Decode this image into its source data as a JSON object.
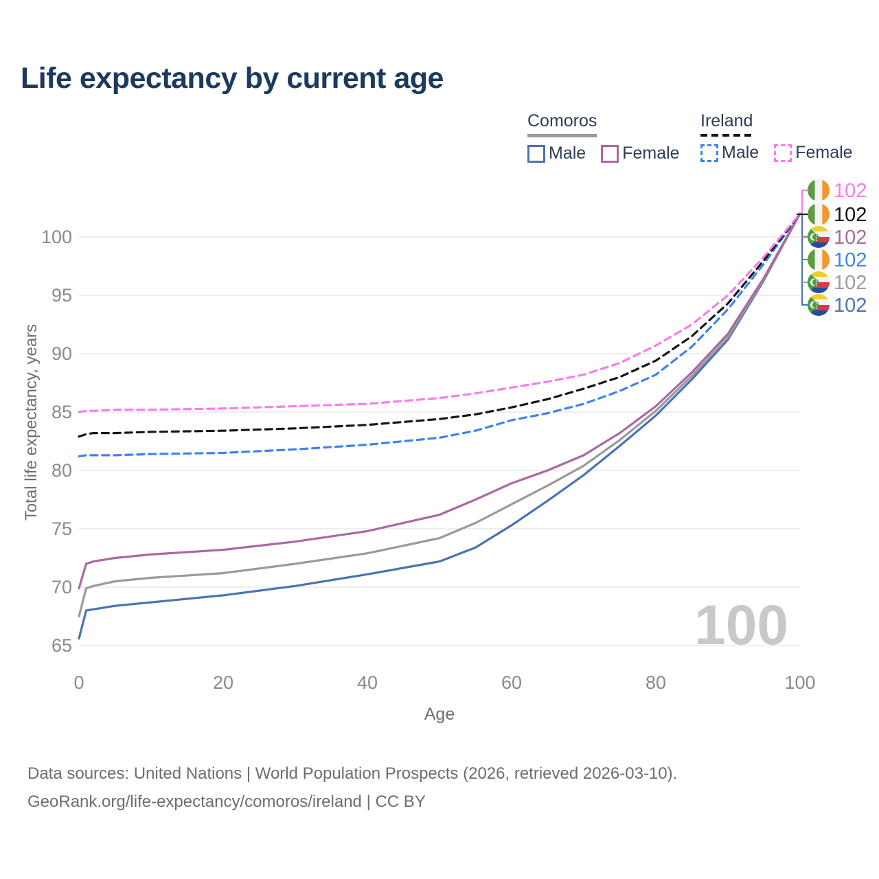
{
  "title": "Life expectancy by current age",
  "legend": {
    "groups": [
      {
        "name": "Comoros",
        "line_style": "solid",
        "underline_color": "#9b9b9b",
        "items": [
          {
            "label": "Male",
            "color": "#4a73b4"
          },
          {
            "label": "Female",
            "color": "#aa69a1"
          }
        ]
      },
      {
        "name": "Ireland",
        "line_style": "dashed",
        "underline_color": "#141414",
        "items": [
          {
            "label": "Male",
            "color": "#3f82ef"
          },
          {
            "label": "Female",
            "color": "#fa7ce9"
          }
        ]
      }
    ]
  },
  "chart_data": {
    "type": "line",
    "title": "Life expectancy by current age",
    "xlabel": "Age",
    "ylabel": "Total life expectancy, years",
    "x_ticks": [
      0,
      20,
      40,
      60,
      80,
      100
    ],
    "y_ticks": [
      65,
      70,
      75,
      80,
      85,
      90,
      95,
      100
    ],
    "xlim": [
      0,
      100
    ],
    "ylim": [
      64,
      103
    ],
    "grid": "horizontal",
    "legend_position": "top-right",
    "ages": [
      0,
      1,
      2,
      5,
      10,
      20,
      30,
      40,
      50,
      55,
      60,
      65,
      70,
      75,
      80,
      85,
      90,
      95,
      100
    ],
    "series": [
      {
        "name": "Comoros Male",
        "country": "Comoros",
        "sex": "Male",
        "style": "solid",
        "color": "#4a73b4",
        "values": [
          65.6,
          68.0,
          68.1,
          68.4,
          68.7,
          69.3,
          70.1,
          71.1,
          72.2,
          73.4,
          75.3,
          77.4,
          79.6,
          82.1,
          84.7,
          87.8,
          91.2,
          96.3,
          102
        ]
      },
      {
        "name": "Comoros Total",
        "country": "Comoros",
        "sex": "Both",
        "style": "solid",
        "color": "#9a9a9a",
        "values": [
          67.5,
          69.9,
          70.1,
          70.5,
          70.8,
          71.2,
          72.0,
          72.9,
          74.2,
          75.5,
          77.1,
          78.7,
          80.4,
          82.6,
          85.1,
          88.1,
          91.4,
          96.4,
          102
        ]
      },
      {
        "name": "Comoros Female",
        "country": "Comoros",
        "sex": "Female",
        "style": "solid",
        "color": "#aa69a1",
        "values": [
          69.9,
          72.0,
          72.2,
          72.5,
          72.8,
          73.2,
          73.9,
          74.8,
          76.2,
          77.5,
          78.9,
          80.0,
          81.3,
          83.2,
          85.5,
          88.4,
          91.7,
          96.5,
          102
        ]
      },
      {
        "name": "Ireland Male",
        "country": "Ireland",
        "sex": "Male",
        "style": "dashed",
        "color": "#3f82ef",
        "values": [
          81.2,
          81.3,
          81.3,
          81.3,
          81.4,
          81.5,
          81.8,
          82.2,
          82.8,
          83.4,
          84.3,
          84.9,
          85.7,
          86.8,
          88.2,
          90.6,
          93.8,
          97.7,
          102
        ]
      },
      {
        "name": "Ireland Total",
        "country": "Ireland",
        "sex": "Both",
        "style": "dashed",
        "color": "#161616",
        "values": [
          82.9,
          83.1,
          83.2,
          83.2,
          83.3,
          83.4,
          83.6,
          83.9,
          84.4,
          84.8,
          85.4,
          86.1,
          87.0,
          88.0,
          89.4,
          91.5,
          94.3,
          98.0,
          102
        ]
      },
      {
        "name": "Ireland Female",
        "country": "Ireland",
        "sex": "Female",
        "style": "dashed",
        "color": "#fa7ce9",
        "values": [
          85.0,
          85.1,
          85.1,
          85.2,
          85.2,
          85.3,
          85.5,
          85.7,
          86.2,
          86.6,
          87.1,
          87.6,
          88.2,
          89.2,
          90.7,
          92.5,
          95.0,
          98.3,
          102
        ]
      }
    ],
    "end_labels": [
      {
        "value": "102",
        "flag": "ireland",
        "color": "#fa7ce9",
        "series": "Ireland Female"
      },
      {
        "value": "102",
        "flag": "ireland",
        "color": "#111111",
        "series": "Ireland Total"
      },
      {
        "value": "102",
        "flag": "comoros",
        "color": "#aa69a1",
        "series": "Comoros Female"
      },
      {
        "value": "102",
        "flag": "ireland",
        "color": "#3f82ef",
        "series": "Ireland Male"
      },
      {
        "value": "102",
        "flag": "comoros",
        "color": "#9d9d9d",
        "series": "Comoros Total"
      },
      {
        "value": "102",
        "flag": "comoros",
        "color": "#4a73b4",
        "series": "Comoros Male"
      }
    ],
    "watermark": "100"
  },
  "flags": {
    "ireland": {
      "green": "#5d9c44",
      "white": "#f5f4f2",
      "orange": "#f1992e"
    },
    "comoros": {
      "yellow": "#edd02c",
      "white": "#f2f2f2",
      "red": "#da3944",
      "blue": "#1f4e9e",
      "green": "#49a13e"
    }
  },
  "colors": {
    "title": "#1d3a5e",
    "axis_text": "#8a8a8a",
    "gridline": "#e9e9e9",
    "watermark": "#c8c8c8",
    "footer_text": "#6d6d6d"
  },
  "footer": {
    "line1": "Data sources: United Nations | World Population Prospects (2026, retrieved 2026-03-10).",
    "line2": "GeoRank.org/life-expectancy/comoros/ireland | CC BY"
  }
}
